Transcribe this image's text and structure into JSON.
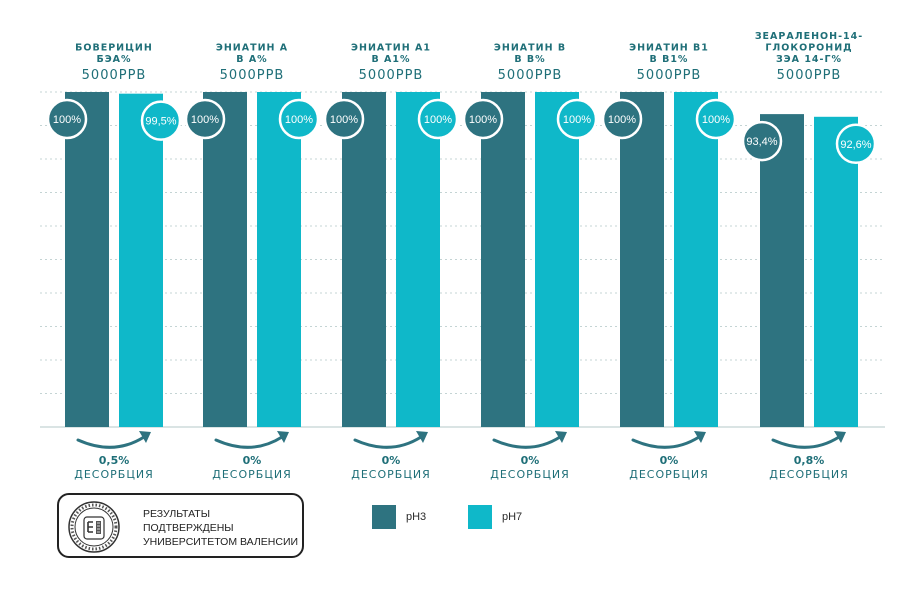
{
  "colors": {
    "ph3": "#2e7380",
    "ph7": "#0fb8c9",
    "text": "#1f6f78",
    "grid": "#c4d4d4"
  },
  "chart_data": {
    "type": "bar",
    "categories": [
      "БОВЕРИЦИН БЭА%",
      "ЭНИАТИН А В А%",
      "ЭНИАТИН А1 В А1%",
      "ЭНИАТИН В В В%",
      "ЭНИАТИН В1 В В1%",
      "ЗЕАРАЛЕНОН-14-ГЛОКОРОНИД ЗЭА 14-Г%"
    ],
    "series": [
      {
        "name": "pH3",
        "values": [
          100,
          100,
          100,
          100,
          100,
          93.4
        ]
      },
      {
        "name": "pH7",
        "values": [
          99.5,
          100,
          100,
          100,
          100,
          92.6
        ]
      }
    ],
    "ylim": [
      0,
      100
    ],
    "grid": true,
    "legend": "bottom",
    "groups": [
      {
        "title_lines": [
          "БОВЕРИЦИН",
          "БЭА%"
        ],
        "ppb": "5000PPB",
        "labels": [
          "100%",
          "99,5%"
        ],
        "desorption_value": "0,5%",
        "desorption_label": "ДЕСОРБЦИЯ"
      },
      {
        "title_lines": [
          "ЭНИАТИН А",
          "В А%"
        ],
        "ppb": "5000PPB",
        "labels": [
          "100%",
          "100%"
        ],
        "desorption_value": "0%",
        "desorption_label": "ДЕСОРБЦИЯ"
      },
      {
        "title_lines": [
          "ЭНИАТИН А1",
          "В А1%"
        ],
        "ppb": "5000PPB",
        "labels": [
          "100%",
          "100%"
        ],
        "desorption_value": "0%",
        "desorption_label": "ДЕСОРБЦИЯ"
      },
      {
        "title_lines": [
          "ЭНИАТИН В",
          "В В%"
        ],
        "ppb": "5000PPB",
        "labels": [
          "100%",
          "100%"
        ],
        "desorption_value": "0%",
        "desorption_label": "ДЕСОРБЦИЯ"
      },
      {
        "title_lines": [
          "ЭНИАТИН В1",
          "В В1%"
        ],
        "ppb": "5000PPB",
        "labels": [
          "100%",
          "100%"
        ],
        "desorption_value": "0%",
        "desorption_label": "ДЕСОРБЦИЯ"
      },
      {
        "title_lines": [
          "ЗЕАРАЛЕНОН-14-",
          "ГЛОКОРОНИД",
          "ЗЭА 14-Г%"
        ],
        "ppb": "5000PPB",
        "labels": [
          "93,4%",
          "92,6%"
        ],
        "desorption_value": "0,8%",
        "desorption_label": "ДЕСОРБЦИЯ"
      }
    ]
  },
  "legend": {
    "ph3_label": "pH3",
    "ph7_label": "pH7"
  },
  "certificate": {
    "lines": [
      "РЕЗУЛЬТАТЫ",
      "ПОДТВЕРЖДЕНЫ",
      "УНИВЕРСИТЕТОМ ВАЛЕНСИИ"
    ]
  }
}
